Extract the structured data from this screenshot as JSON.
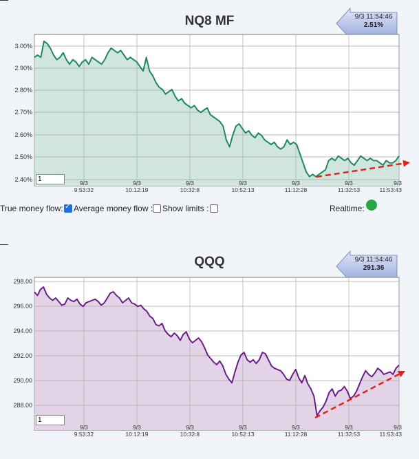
{
  "charts": [
    {
      "title": "NQ8 MF",
      "flag": {
        "time": "9/3 11:54:46",
        "value": "2.51%"
      },
      "zoom_value": "1",
      "line_color": "#1e8a5a",
      "fill_color": "#cfe5dd",
      "y_ticks": [
        "3.00%",
        "2.90%",
        "2.80%",
        "2.70%",
        "2.60%",
        "2.50%",
        "2.40%"
      ]
    },
    {
      "title": "QQQ",
      "flag": {
        "time": "9/3 11:54:46",
        "value": "291.36"
      },
      "zoom_value": "1",
      "line_color": "#6b1e86",
      "fill_color": "#e3d3e6",
      "y_ticks": [
        "298.00",
        "296.00",
        "294.00",
        "292.00",
        "290.00",
        "288.00"
      ]
    }
  ],
  "x_ticks": [
    {
      "date": "9/3",
      "time": ""
    },
    {
      "date": "9/3",
      "time": "9:53:32"
    },
    {
      "date": "9/3",
      "time": "10:12:19"
    },
    {
      "date": "9/3",
      "time": "10:32:8"
    },
    {
      "date": "9/3",
      "time": "10:52:13"
    },
    {
      "date": "9/3",
      "time": "11:12:28"
    },
    {
      "date": "9/3",
      "time": "11:32:53"
    },
    {
      "date": "9/3",
      "time": "11:53:43"
    }
  ],
  "controls": {
    "true_money_flow_label": "True money flow:",
    "true_money_flow_checked": true,
    "average_money_flow_label": "Average money flow :",
    "average_money_flow_checked": false,
    "show_limits_label": "Show limits :",
    "show_limits_checked": false,
    "realtime_label": "Realtime:",
    "realtime_color": "#27a844"
  },
  "trend_arrow_color": "#e8201c",
  "chart_data": [
    {
      "type": "area",
      "title": "NQ8 MF",
      "ylim": [
        2.38,
        3.04
      ],
      "yunit": "%",
      "x_tick_labels": [
        "9/3",
        "9/3 9:53:32",
        "9/3 10:12:19",
        "9/3 10:32:8",
        "9/3 10:52:13",
        "9/3 11:12:28",
        "9/3 11:32:53",
        "9/3 11:53:43"
      ],
      "values": [
        2.94,
        2.95,
        2.94,
        3.01,
        3.0,
        2.98,
        2.95,
        2.93,
        2.94,
        2.96,
        2.93,
        2.91,
        2.93,
        2.92,
        2.9,
        2.92,
        2.93,
        2.91,
        2.94,
        2.93,
        2.92,
        2.91,
        2.93,
        2.96,
        2.98,
        2.97,
        2.96,
        2.97,
        2.95,
        2.93,
        2.94,
        2.93,
        2.92,
        2.9,
        2.88,
        2.94,
        2.88,
        2.86,
        2.83,
        2.81,
        2.8,
        2.78,
        2.79,
        2.8,
        2.77,
        2.75,
        2.76,
        2.74,
        2.73,
        2.72,
        2.73,
        2.71,
        2.7,
        2.71,
        2.72,
        2.69,
        2.68,
        2.67,
        2.66,
        2.64,
        2.58,
        2.55,
        2.6,
        2.64,
        2.65,
        2.63,
        2.61,
        2.62,
        2.6,
        2.59,
        2.61,
        2.6,
        2.58,
        2.57,
        2.56,
        2.57,
        2.55,
        2.54,
        2.55,
        2.58,
        2.56,
        2.57,
        2.56,
        2.52,
        2.48,
        2.44,
        2.42,
        2.43,
        2.42,
        2.43,
        2.44,
        2.45,
        2.49,
        2.5,
        2.49,
        2.51,
        2.5,
        2.49,
        2.5,
        2.48,
        2.47,
        2.49,
        2.51,
        2.5,
        2.49,
        2.5,
        2.49,
        2.49,
        2.48,
        2.47,
        2.49,
        2.48,
        2.48,
        2.49,
        2.51
      ]
    },
    {
      "type": "area",
      "title": "QQQ",
      "ylim": [
        286.0,
        298.6
      ],
      "x_tick_labels": [
        "9/3",
        "9/3 9:53:32",
        "9/3 10:12:19",
        "9/3 10:32:8",
        "9/3 10:52:13",
        "9/3 11:12:28",
        "9/3 11:32:53",
        "9/3 11:53:43"
      ],
      "values": [
        297.4,
        297.1,
        297.6,
        297.8,
        297.2,
        296.9,
        296.7,
        296.9,
        296.6,
        296.3,
        296.4,
        296.9,
        296.7,
        296.6,
        296.8,
        296.4,
        296.2,
        296.5,
        296.6,
        296.7,
        296.8,
        296.6,
        296.3,
        296.5,
        296.9,
        297.3,
        297.4,
        297.1,
        296.9,
        296.5,
        296.7,
        296.9,
        296.5,
        296.4,
        296.2,
        296.3,
        296.0,
        295.8,
        295.4,
        295.2,
        294.7,
        294.6,
        294.8,
        294.2,
        293.9,
        293.7,
        294.0,
        293.8,
        293.4,
        293.9,
        294.1,
        293.5,
        293.2,
        293.4,
        293.6,
        293.3,
        292.8,
        292.2,
        291.9,
        291.6,
        291.4,
        291.7,
        291.3,
        290.6,
        290.2,
        289.9,
        290.8,
        291.6,
        292.2,
        292.4,
        291.8,
        291.6,
        291.8,
        291.5,
        291.8,
        292.4,
        292.3,
        291.8,
        291.3,
        291.1,
        291.0,
        290.9,
        290.6,
        290.2,
        290.1,
        290.6,
        291.0,
        290.3,
        289.9,
        290.5,
        289.8,
        289.4,
        288.8,
        287.2,
        287.6,
        287.9,
        288.4,
        289.1,
        289.4,
        288.8,
        289.2,
        289.3,
        289.6,
        289.2,
        288.6,
        288.8,
        289.2,
        289.8,
        290.4,
        290.9,
        290.6,
        290.4,
        290.7,
        291.1,
        290.9,
        290.6,
        290.7,
        290.8,
        290.6,
        291.1,
        291.36
      ]
    }
  ]
}
